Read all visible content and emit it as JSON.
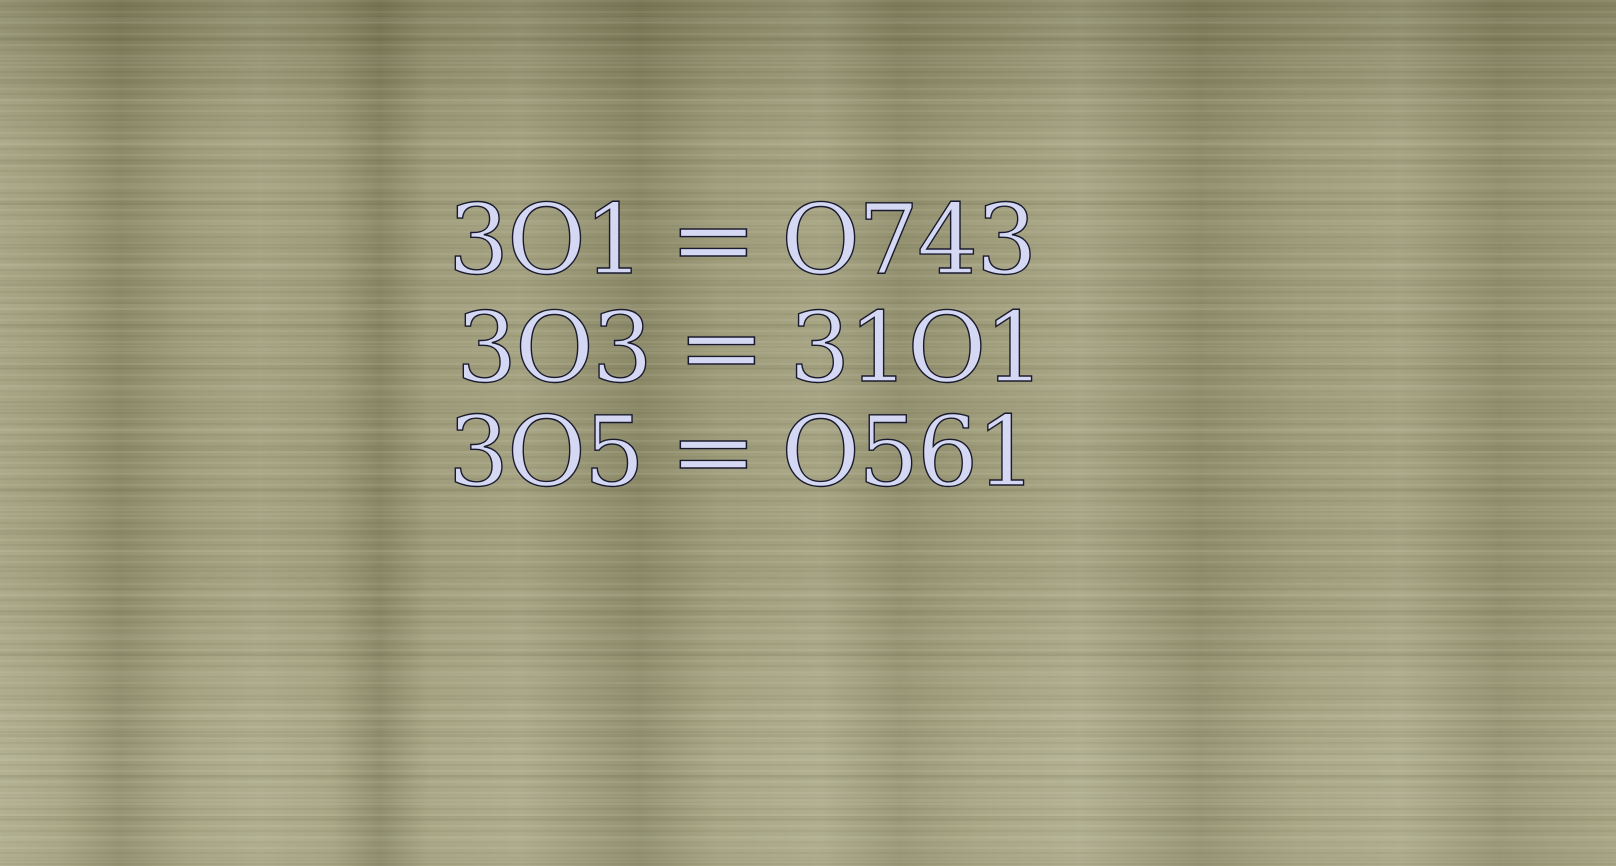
{
  "puzzle": {
    "lines": [
      {
        "left": "3O1",
        "equals": "=",
        "right": "O743"
      },
      {
        "left": "3O3",
        "equals": "=",
        "right": "31O1"
      },
      {
        "left": "3O5",
        "equals": "=",
        "right": "O561"
      }
    ]
  },
  "colors": {
    "text_fill": "#d4d8f2",
    "text_outline": "#1a1a2e",
    "background": "#9e9c7a"
  }
}
